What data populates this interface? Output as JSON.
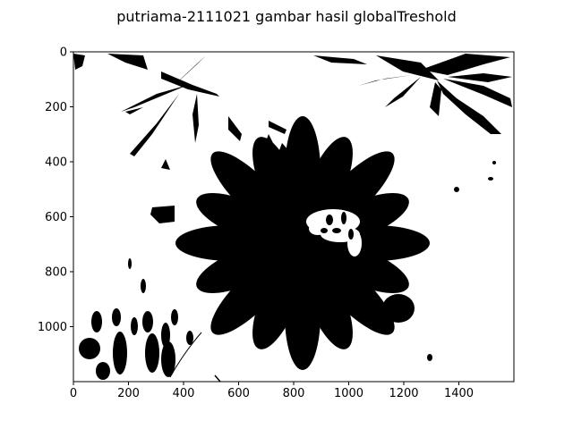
{
  "chart_data": {
    "type": "heatmap",
    "title": "putriama-2111021 gambar hasil globalTreshold",
    "xlabel": "",
    "ylabel": "",
    "xlim": [
      0,
      1600
    ],
    "ylim": [
      1200,
      0
    ],
    "x_ticks": [
      0,
      200,
      400,
      600,
      800,
      1000,
      1200,
      1400
    ],
    "y_ticks": [
      0,
      200,
      400,
      600,
      800,
      1000
    ],
    "grid": false,
    "colormap": "binary (black/white)",
    "content": "binary thresholded photograph of a flower"
  },
  "colors": {
    "foreground": "#000000",
    "background": "#ffffff"
  }
}
